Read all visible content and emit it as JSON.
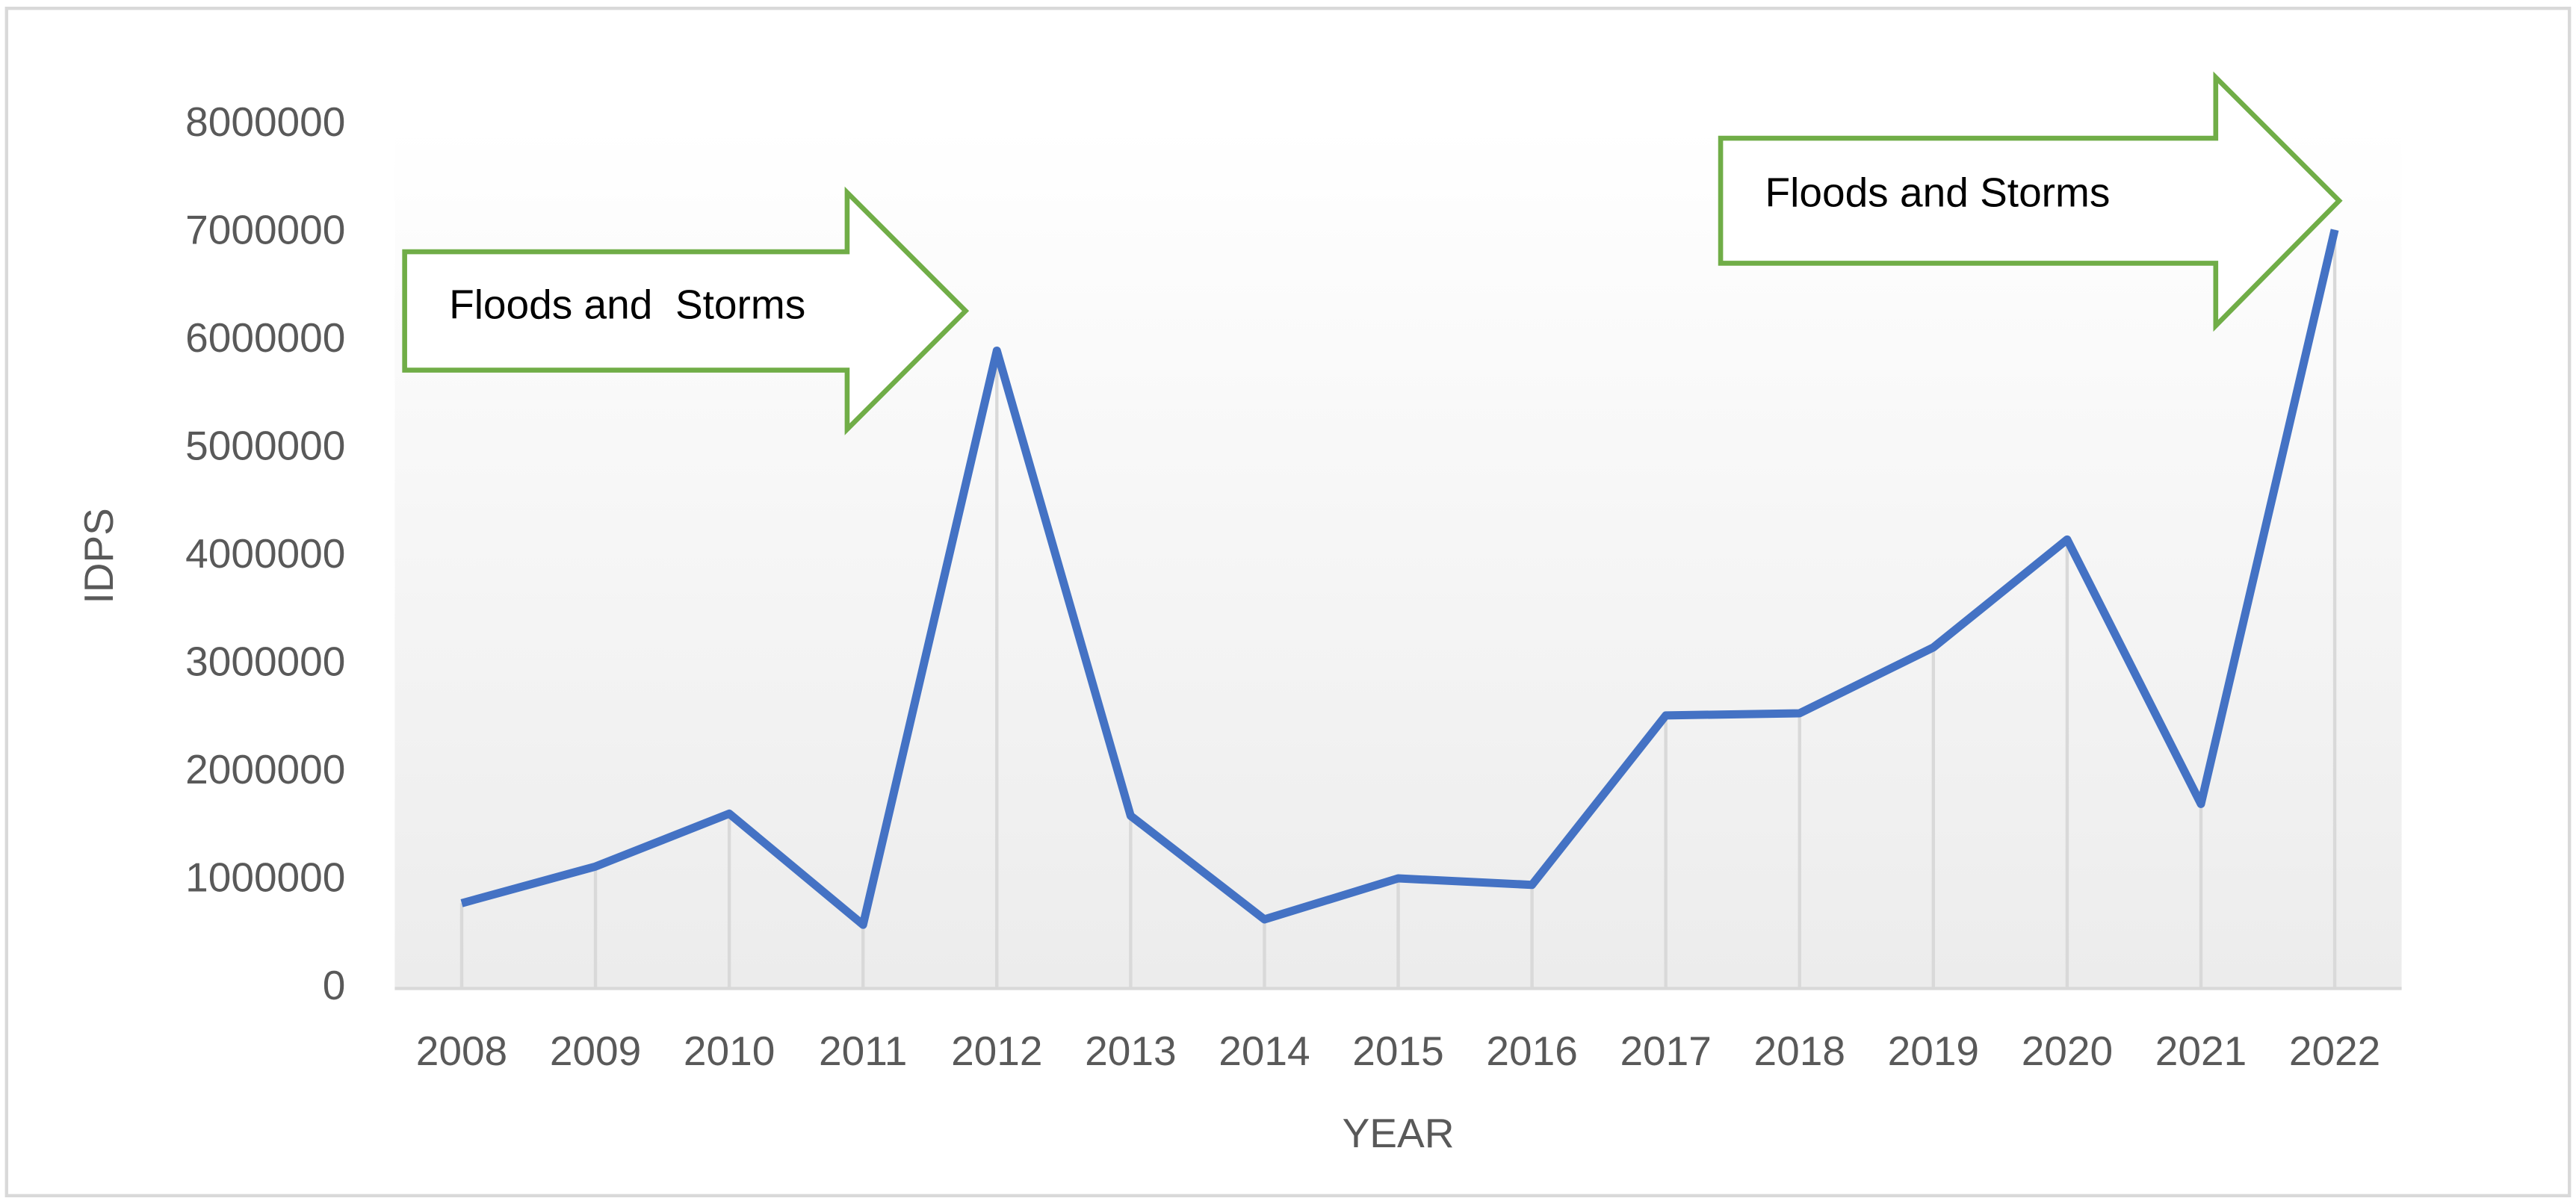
{
  "chart_data": {
    "type": "line",
    "x_label": "YEAR",
    "y_label": "IDPS",
    "categories": [
      "2008",
      "2009",
      "2010",
      "2011",
      "2012",
      "2013",
      "2014",
      "2015",
      "2016",
      "2017",
      "2018",
      "2019",
      "2020",
      "2021",
      "2022"
    ],
    "series": [
      {
        "color": "#4472c4",
        "values": [
          790000,
          1130000,
          1620000,
          590000,
          5910000,
          1600000,
          640000,
          1020000,
          960000,
          2530000,
          2550000,
          3160000,
          4160000,
          1710000,
          7030000
        ]
      }
    ],
    "ylim": [
      0,
      8000000
    ],
    "yticks": [
      0,
      1000000,
      2000000,
      3000000,
      4000000,
      5000000,
      6000000,
      7000000,
      8000000
    ],
    "drop_lines": true,
    "annotations": [
      {
        "text": "Floods and  Storms",
        "color": "#70ad47"
      },
      {
        "text": "Floods and Storms",
        "color": "#70ad47"
      }
    ]
  }
}
